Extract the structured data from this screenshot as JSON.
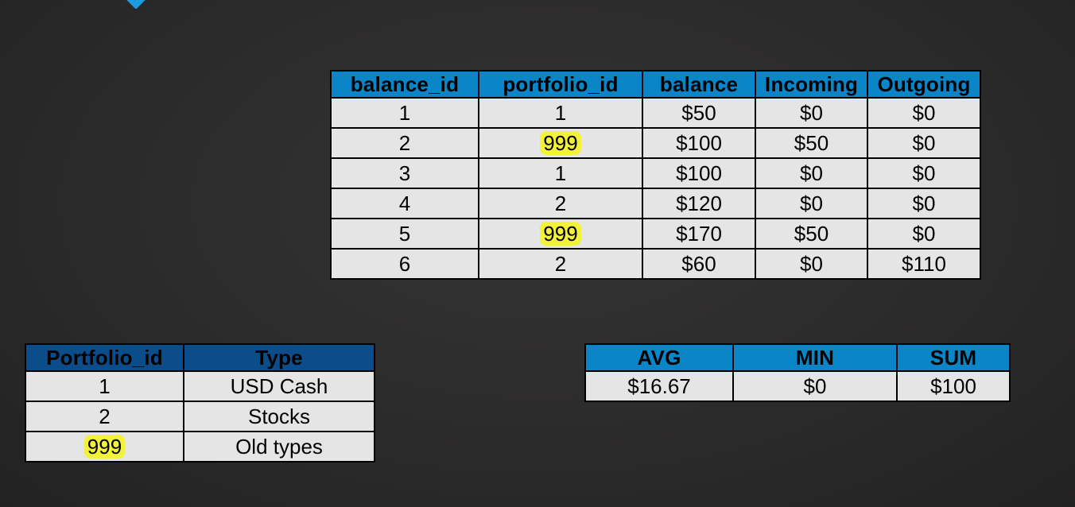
{
  "balance_table": {
    "headers": [
      "balance_id",
      "portfolio_id",
      "balance",
      "Incoming",
      "Outgoing"
    ],
    "rows": [
      [
        "1",
        "1",
        "$50",
        "$0",
        "$0"
      ],
      [
        "2",
        "999",
        "$100",
        "$50",
        "$0"
      ],
      [
        "3",
        "1",
        "$100",
        "$0",
        "$0"
      ],
      [
        "4",
        "2",
        "$120",
        "$0",
        "$0"
      ],
      [
        "5",
        "999",
        "$170",
        "$50",
        "$0"
      ],
      [
        "6",
        "2",
        "$60",
        "$0",
        "$110"
      ]
    ]
  },
  "portfolio_table": {
    "headers": [
      "Portfolio_id",
      "Type"
    ],
    "rows": [
      [
        "1",
        "USD Cash"
      ],
      [
        "2",
        "Stocks"
      ],
      [
        "999",
        "Old types"
      ]
    ]
  },
  "aggregate_table": {
    "headers": [
      "AVG",
      "MIN",
      "SUM"
    ],
    "rows": [
      [
        "$16.67",
        "$0",
        "$100"
      ]
    ]
  },
  "colors": {
    "header_blue": "#0a86c8",
    "header_dark_blue": "#0b4d8a",
    "cell_background": "#e6e5e6",
    "highlight": "#f2f23a",
    "page_background": "#2b2a2a"
  }
}
